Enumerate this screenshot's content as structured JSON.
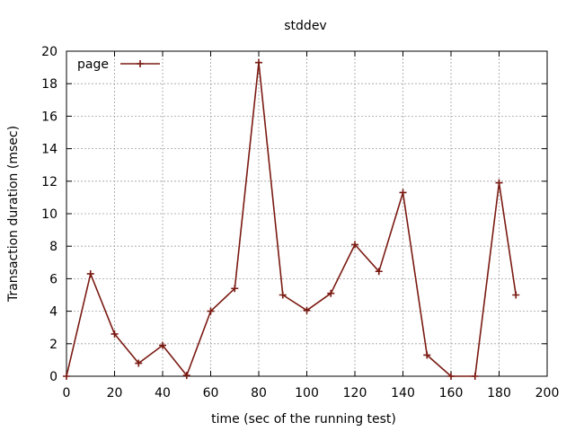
{
  "chart_data": {
    "type": "line",
    "title": "stddev",
    "xlabel": "time (sec of the running test)",
    "ylabel": "Transaction duration (msec)",
    "xlim": [
      0,
      200
    ],
    "ylim": [
      0,
      20
    ],
    "x_ticks": [
      "0",
      "20",
      "40",
      "60",
      "80",
      "100",
      "120",
      "140",
      "160",
      "180",
      "200"
    ],
    "y_ticks": [
      "0",
      "2",
      "4",
      "6",
      "8",
      "10",
      "12",
      "14",
      "16",
      "18",
      "20"
    ],
    "grid": true,
    "legend_position": "top-left",
    "series": [
      {
        "name": "page",
        "color": "#7a1a12",
        "marker": "plus",
        "points": [
          [
            0,
            0
          ],
          [
            10,
            6.3
          ],
          [
            20,
            2.6
          ],
          [
            30,
            0.8
          ],
          [
            40,
            1.9
          ],
          [
            50,
            0.05
          ],
          [
            60,
            4.0
          ],
          [
            70,
            5.4
          ],
          [
            80,
            19.3
          ],
          [
            90,
            5.0
          ],
          [
            100,
            4.05
          ],
          [
            110,
            5.1
          ],
          [
            120,
            8.1
          ],
          [
            130,
            6.45
          ],
          [
            140,
            11.3
          ],
          [
            150,
            1.3
          ],
          [
            160,
            0.0
          ],
          [
            170,
            0.0
          ],
          [
            180,
            11.9
          ],
          [
            187,
            5.0
          ]
        ]
      }
    ]
  }
}
